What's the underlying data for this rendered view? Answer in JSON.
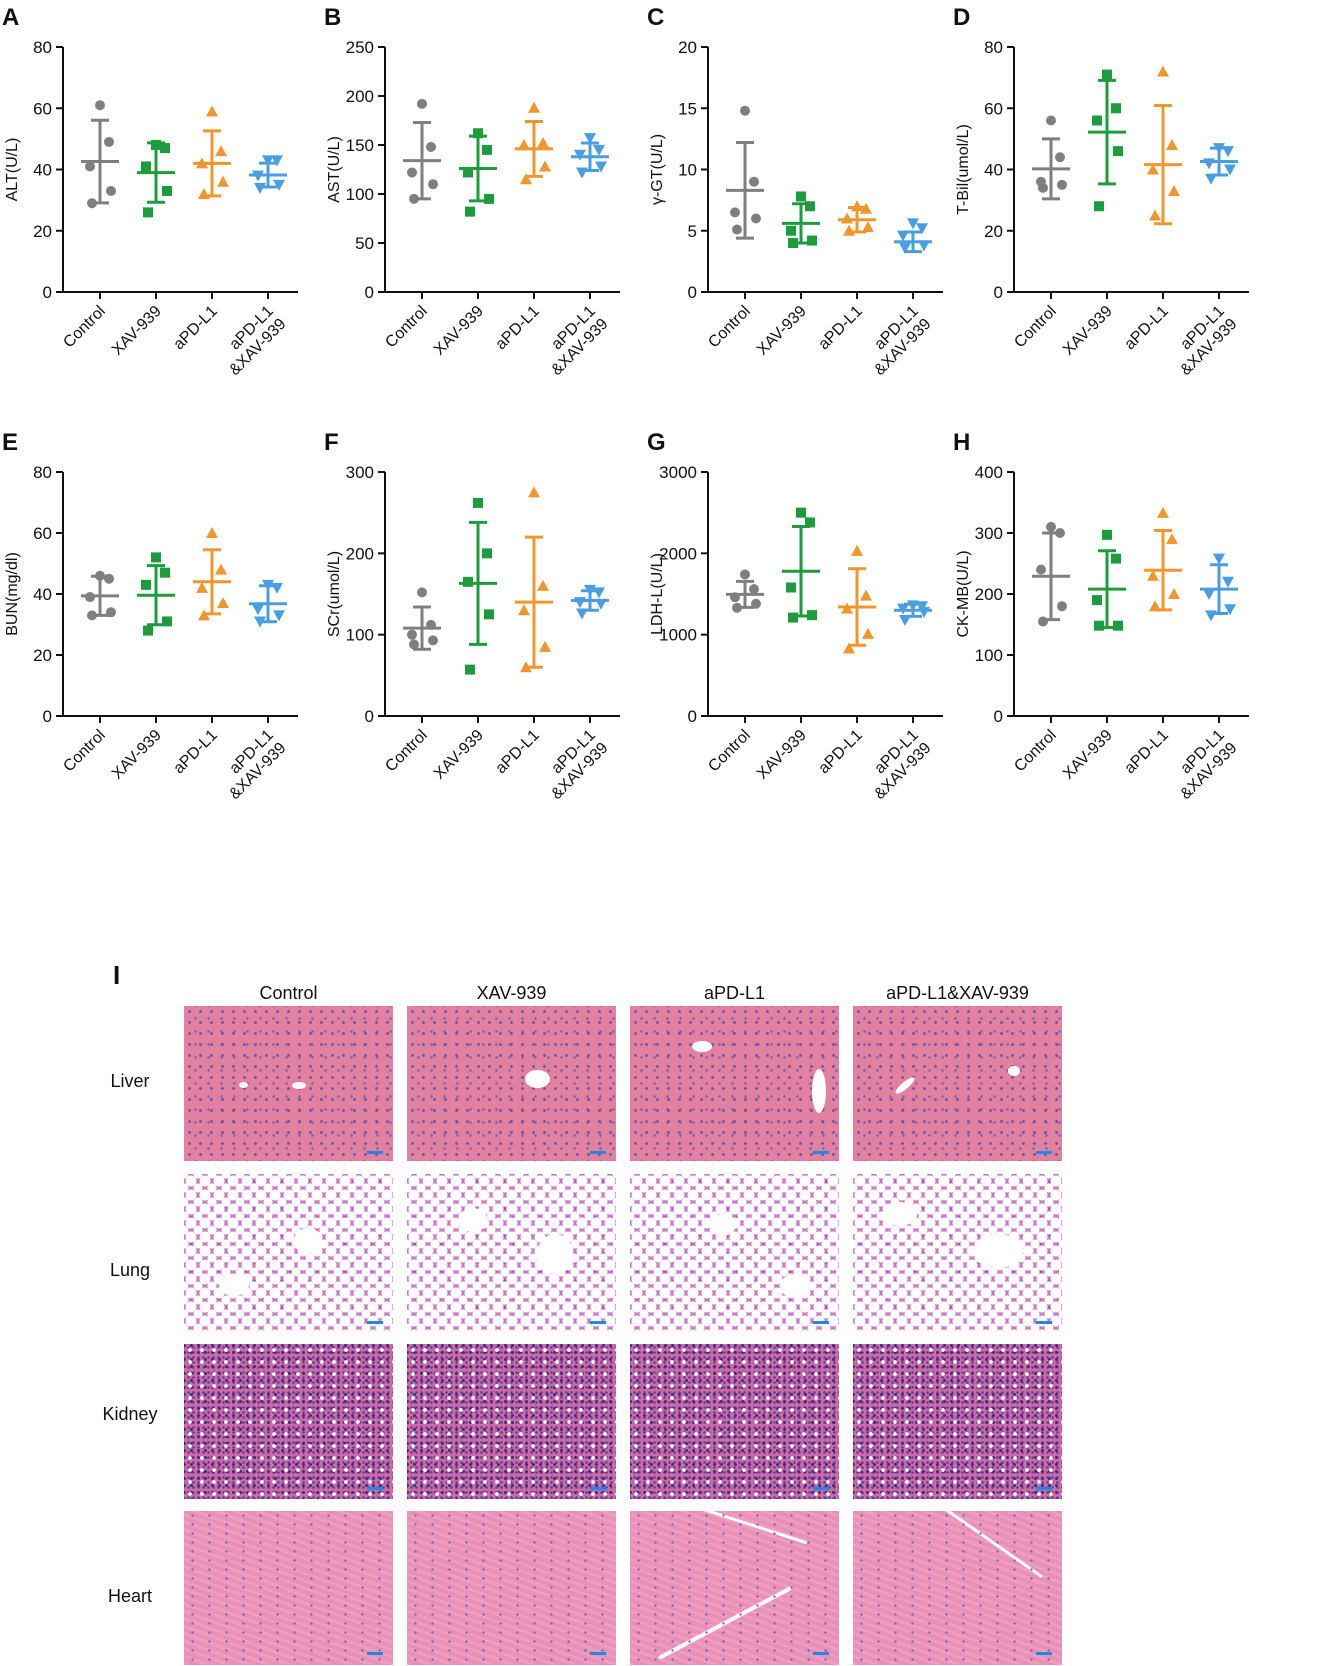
{
  "colors": {
    "Control": "#7f7f7f",
    "XAV-939": "#1e9b3c",
    "aPD-L1": "#f0962e",
    "aPD-L1&XAV-939": "#4a9ee0",
    "scale_bar": "#1e88e5"
  },
  "chart_data": [
    {
      "panel": "A",
      "type": "scatter",
      "ylabel": "ALT(U/L)",
      "ylim": [
        0,
        80
      ],
      "yticks": [
        0,
        20,
        40,
        60,
        80
      ],
      "categories": [
        "Control",
        "XAV-939",
        "aPD-L1",
        "aPD-L1\n&XAV-939"
      ],
      "series": [
        {
          "name": "Control",
          "marker": "circle",
          "points": [
            61,
            49,
            41,
            33,
            29
          ],
          "mean": 42.6,
          "sd": 13.5
        },
        {
          "name": "XAV-939",
          "marker": "square",
          "points": [
            48,
            47,
            41,
            33,
            26
          ],
          "mean": 39.0,
          "sd": 9.7
        },
        {
          "name": "aPD-L1",
          "marker": "triangle-up",
          "points": [
            59,
            46,
            42,
            36,
            32
          ],
          "mean": 42.0,
          "sd": 10.6
        },
        {
          "name": "aPD-L1&XAV-939",
          "marker": "triangle-down",
          "points": [
            43,
            43,
            38,
            35,
            34
          ],
          "mean": 38.2,
          "sd": 3.9
        }
      ]
    },
    {
      "panel": "B",
      "type": "scatter",
      "ylabel": "AST(U/L)",
      "ylim": [
        0,
        250
      ],
      "yticks": [
        0,
        50,
        100,
        150,
        200,
        250
      ],
      "categories": [
        "Control",
        "XAV-939",
        "aPD-L1",
        "aPD-L1\n&XAV-939"
      ],
      "series": [
        {
          "name": "Control",
          "marker": "circle",
          "points": [
            192,
            148,
            122,
            110,
            95
          ],
          "mean": 134,
          "sd": 39
        },
        {
          "name": "XAV-939",
          "marker": "square",
          "points": [
            162,
            145,
            122,
            95,
            82
          ],
          "mean": 126,
          "sd": 33
        },
        {
          "name": "aPD-L1",
          "marker": "triangle-up",
          "points": [
            188,
            152,
            150,
            128,
            115
          ],
          "mean": 146,
          "sd": 28
        },
        {
          "name": "aPD-L1&XAV-939",
          "marker": "triangle-down",
          "points": [
            157,
            145,
            140,
            128,
            122
          ],
          "mean": 138,
          "sd": 14
        }
      ]
    },
    {
      "panel": "C",
      "type": "scatter",
      "ylabel": "γ-GT(U/L)",
      "ylim": [
        0,
        20
      ],
      "yticks": [
        0,
        5,
        10,
        15,
        20
      ],
      "categories": [
        "Control",
        "XAV-939",
        "aPD-L1",
        "aPD-L1\n&XAV-939"
      ],
      "series": [
        {
          "name": "Control",
          "marker": "circle",
          "points": [
            14.8,
            9.0,
            6.5,
            6.0,
            5.1
          ],
          "mean": 8.3,
          "sd": 3.9
        },
        {
          "name": "XAV-939",
          "marker": "square",
          "points": [
            7.8,
            7.0,
            5.0,
            4.2,
            4.0
          ],
          "mean": 5.6,
          "sd": 1.6
        },
        {
          "name": "aPD-L1",
          "marker": "triangle-up",
          "points": [
            7.0,
            6.8,
            6.0,
            5.3,
            5.0
          ],
          "mean": 5.9,
          "sd": 1.0
        },
        {
          "name": "aPD-L1&XAV-939",
          "marker": "triangle-down",
          "points": [
            5.6,
            5.2,
            4.6,
            3.8,
            3.6
          ],
          "mean": 4.1,
          "sd": 0.8
        }
      ]
    },
    {
      "panel": "D",
      "type": "scatter",
      "ylabel": "T-Bil(umol/L)",
      "ylim": [
        0,
        80
      ],
      "yticks": [
        0,
        20,
        40,
        60,
        80
      ],
      "categories": [
        "Control",
        "XAV-939",
        "aPD-L1",
        "aPD-L1\n&XAV-939"
      ],
      "series": [
        {
          "name": "Control",
          "marker": "circle",
          "points": [
            56,
            44,
            36,
            35,
            34
          ],
          "mean": 40.2,
          "sd": 9.8
        },
        {
          "name": "XAV-939",
          "marker": "square",
          "points": [
            71,
            60,
            56,
            46,
            28
          ],
          "mean": 52.2,
          "sd": 16.9
        },
        {
          "name": "aPD-L1",
          "marker": "triangle-up",
          "points": [
            72,
            48,
            40,
            33,
            25
          ],
          "mean": 41.6,
          "sd": 19.3
        },
        {
          "name": "aPD-L1&XAV-939",
          "marker": "triangle-down",
          "points": [
            47,
            46,
            42,
            40,
            37
          ],
          "mean": 42.6,
          "sd": 4.4
        }
      ]
    },
    {
      "panel": "E",
      "type": "scatter",
      "ylabel": "BUN(mg/dl)",
      "ylim": [
        0,
        80
      ],
      "yticks": [
        0,
        20,
        40,
        60,
        80
      ],
      "categories": [
        "Control",
        "XAV-939",
        "aPD-L1",
        "aPD-L1\n&XAV-939"
      ],
      "series": [
        {
          "name": "Control",
          "marker": "circle",
          "points": [
            46,
            45,
            39,
            34,
            33
          ],
          "mean": 39.4,
          "sd": 6.4
        },
        {
          "name": "XAV-939",
          "marker": "square",
          "points": [
            52,
            47,
            43,
            31,
            28
          ],
          "mean": 39.6,
          "sd": 9.7
        },
        {
          "name": "aPD-L1",
          "marker": "triangle-up",
          "points": [
            60,
            48,
            42,
            37,
            33
          ],
          "mean": 44.0,
          "sd": 10.5
        },
        {
          "name": "aPD-L1&XAV-939",
          "marker": "triangle-down",
          "points": [
            43,
            42,
            35,
            33,
            31
          ],
          "mean": 36.8,
          "sd": 5.9
        }
      ]
    },
    {
      "panel": "F",
      "type": "scatter",
      "ylabel": "SCr(umol/L)",
      "ylim": [
        0,
        300
      ],
      "yticks": [
        0,
        100,
        200,
        300
      ],
      "categories": [
        "Control",
        "XAV-939",
        "aPD-L1",
        "aPD-L1\n&XAV-939"
      ],
      "series": [
        {
          "name": "Control",
          "marker": "circle",
          "points": [
            152,
            112,
            100,
            93,
            88
          ],
          "mean": 108,
          "sd": 26
        },
        {
          "name": "XAV-939",
          "marker": "square",
          "points": [
            262,
            200,
            165,
            125,
            57
          ],
          "mean": 163,
          "sd": 75
        },
        {
          "name": "aPD-L1",
          "marker": "triangle-up",
          "points": [
            275,
            160,
            130,
            85,
            60
          ],
          "mean": 140,
          "sd": 80
        },
        {
          "name": "aPD-L1&XAV-939",
          "marker": "triangle-down",
          "points": [
            155,
            152,
            140,
            138,
            126
          ],
          "mean": 142,
          "sd": 12
        }
      ]
    },
    {
      "panel": "G",
      "type": "scatter",
      "ylabel": "LDH-L(U/L)",
      "ylim": [
        0,
        3000
      ],
      "yticks": [
        0,
        1000,
        2000,
        3000
      ],
      "categories": [
        "Control",
        "XAV-939",
        "aPD-L1",
        "aPD-L1\n&XAV-939"
      ],
      "series": [
        {
          "name": "Control",
          "marker": "circle",
          "points": [
            1740,
            1560,
            1460,
            1380,
            1330
          ],
          "mean": 1495,
          "sd": 160
        },
        {
          "name": "XAV-939",
          "marker": "square",
          "points": [
            2500,
            2380,
            1580,
            1240,
            1210
          ],
          "mean": 1780,
          "sd": 550
        },
        {
          "name": "aPD-L1",
          "marker": "triangle-up",
          "points": [
            2030,
            1480,
            1320,
            1010,
            830
          ],
          "mean": 1340,
          "sd": 470
        },
        {
          "name": "aPD-L1&XAV-939",
          "marker": "triangle-down",
          "points": [
            1360,
            1350,
            1320,
            1280,
            1180
          ],
          "mean": 1300,
          "sd": 75
        }
      ]
    },
    {
      "panel": "H",
      "type": "scatter",
      "ylabel": "CK-MB(U/L)",
      "ylim": [
        0,
        400
      ],
      "yticks": [
        0,
        100,
        200,
        300,
        400
      ],
      "categories": [
        "Control",
        "XAV-939",
        "aPD-L1",
        "aPD-L1\n&XAV-939"
      ],
      "series": [
        {
          "name": "Control",
          "marker": "circle",
          "points": [
            310,
            300,
            240,
            180,
            155
          ],
          "mean": 229,
          "sd": 71
        },
        {
          "name": "XAV-939",
          "marker": "square",
          "points": [
            297,
            258,
            190,
            148,
            148
          ],
          "mean": 208,
          "sd": 63
        },
        {
          "name": "aPD-L1",
          "marker": "triangle-up",
          "points": [
            333,
            290,
            230,
            200,
            180
          ],
          "mean": 239,
          "sd": 65
        },
        {
          "name": "aPD-L1&XAV-939",
          "marker": "triangle-down",
          "points": [
            258,
            220,
            200,
            175,
            165
          ],
          "mean": 208,
          "sd": 40
        }
      ]
    }
  ],
  "histology": {
    "panel": "I",
    "columns": [
      "Control",
      "XAV-939",
      "aPD-L1",
      "aPD-L1&XAV-939"
    ],
    "rows": [
      "Liver",
      "Lung",
      "Kidney",
      "Heart"
    ]
  }
}
